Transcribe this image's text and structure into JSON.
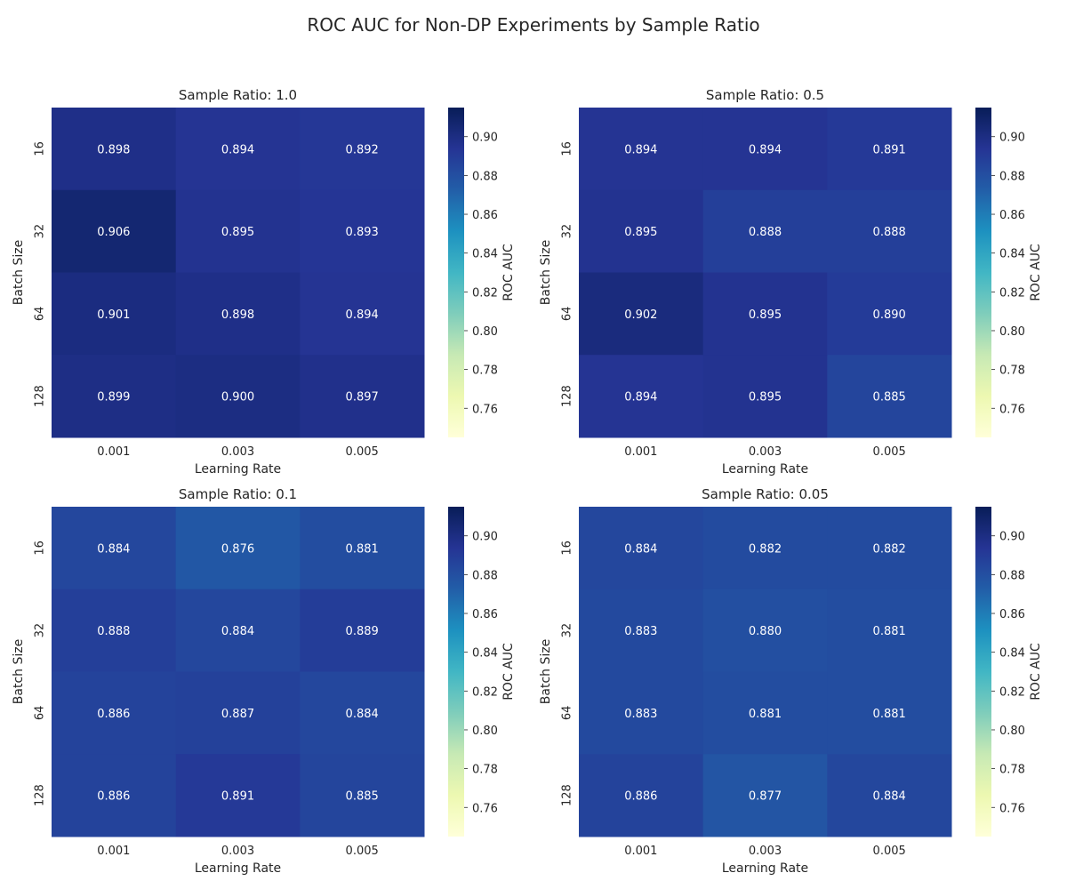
{
  "figure": {
    "title": "ROC AUC for Non-DP Experiments by Sample Ratio"
  },
  "chart_data": [
    {
      "type": "heatmap",
      "title": "Sample Ratio: 1.0",
      "xlabel": "Learning Rate",
      "ylabel": "Batch Size",
      "x_categories": [
        "0.001",
        "0.003",
        "0.005"
      ],
      "y_categories": [
        "16",
        "32",
        "64",
        "128"
      ],
      "values": [
        [
          0.898,
          0.894,
          0.892
        ],
        [
          0.906,
          0.895,
          0.893
        ],
        [
          0.901,
          0.898,
          0.894
        ],
        [
          0.899,
          0.9,
          0.897
        ]
      ],
      "value_labels": [
        [
          "0.898",
          "0.894",
          "0.892"
        ],
        [
          "0.906",
          "0.895",
          "0.893"
        ],
        [
          "0.901",
          "0.898",
          "0.894"
        ],
        [
          "0.899",
          "0.900",
          "0.897"
        ]
      ],
      "colorbar": {
        "label": "ROC AUC",
        "range": [
          0.745,
          0.915
        ],
        "ticks": [
          "0.76",
          "0.78",
          "0.80",
          "0.82",
          "0.84",
          "0.86",
          "0.88",
          "0.90"
        ],
        "colormap": "YlGnBu"
      }
    },
    {
      "type": "heatmap",
      "title": "Sample Ratio: 0.5",
      "xlabel": "Learning Rate",
      "ylabel": "Batch Size",
      "x_categories": [
        "0.001",
        "0.003",
        "0.005"
      ],
      "y_categories": [
        "16",
        "32",
        "64",
        "128"
      ],
      "values": [
        [
          0.894,
          0.894,
          0.891
        ],
        [
          0.895,
          0.888,
          0.888
        ],
        [
          0.902,
          0.895,
          0.89
        ],
        [
          0.894,
          0.895,
          0.885
        ]
      ],
      "value_labels": [
        [
          "0.894",
          "0.894",
          "0.891"
        ],
        [
          "0.895",
          "0.888",
          "0.888"
        ],
        [
          "0.902",
          "0.895",
          "0.890"
        ],
        [
          "0.894",
          "0.895",
          "0.885"
        ]
      ],
      "colorbar": {
        "label": "ROC AUC",
        "range": [
          0.745,
          0.915
        ],
        "ticks": [
          "0.76",
          "0.78",
          "0.80",
          "0.82",
          "0.84",
          "0.86",
          "0.88",
          "0.90"
        ],
        "colormap": "YlGnBu"
      }
    },
    {
      "type": "heatmap",
      "title": "Sample Ratio: 0.1",
      "xlabel": "Learning Rate",
      "ylabel": "Batch Size",
      "x_categories": [
        "0.001",
        "0.003",
        "0.005"
      ],
      "y_categories": [
        "16",
        "32",
        "64",
        "128"
      ],
      "values": [
        [
          0.884,
          0.876,
          0.881
        ],
        [
          0.888,
          0.884,
          0.889
        ],
        [
          0.886,
          0.887,
          0.884
        ],
        [
          0.886,
          0.891,
          0.885
        ]
      ],
      "value_labels": [
        [
          "0.884",
          "0.876",
          "0.881"
        ],
        [
          "0.888",
          "0.884",
          "0.889"
        ],
        [
          "0.886",
          "0.887",
          "0.884"
        ],
        [
          "0.886",
          "0.891",
          "0.885"
        ]
      ],
      "colorbar": {
        "label": "ROC AUC",
        "range": [
          0.745,
          0.915
        ],
        "ticks": [
          "0.76",
          "0.78",
          "0.80",
          "0.82",
          "0.84",
          "0.86",
          "0.88",
          "0.90"
        ],
        "colormap": "YlGnBu"
      }
    },
    {
      "type": "heatmap",
      "title": "Sample Ratio: 0.05",
      "xlabel": "Learning Rate",
      "ylabel": "Batch Size",
      "x_categories": [
        "0.001",
        "0.003",
        "0.005"
      ],
      "y_categories": [
        "16",
        "32",
        "64",
        "128"
      ],
      "values": [
        [
          0.884,
          0.882,
          0.882
        ],
        [
          0.883,
          0.88,
          0.881
        ],
        [
          0.883,
          0.881,
          0.881
        ],
        [
          0.886,
          0.877,
          0.884
        ]
      ],
      "value_labels": [
        [
          "0.884",
          "0.882",
          "0.882"
        ],
        [
          "0.883",
          "0.880",
          "0.881"
        ],
        [
          "0.883",
          "0.881",
          "0.881"
        ],
        [
          "0.886",
          "0.877",
          "0.884"
        ]
      ],
      "colorbar": {
        "label": "ROC AUC",
        "range": [
          0.745,
          0.915
        ],
        "ticks": [
          "0.76",
          "0.78",
          "0.80",
          "0.82",
          "0.84",
          "0.86",
          "0.88",
          "0.90"
        ],
        "colormap": "YlGnBu"
      }
    }
  ]
}
